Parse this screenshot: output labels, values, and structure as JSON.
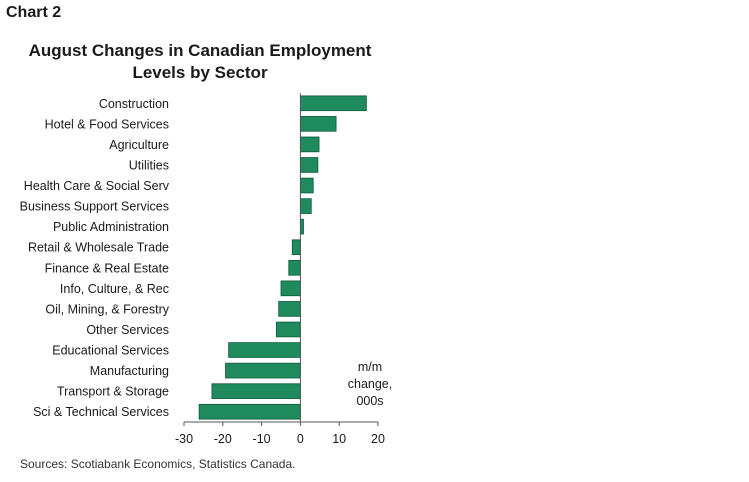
{
  "header": {
    "chart_label": "Chart 2",
    "title_line1": "August Changes in Canadian Employment",
    "title_line2": "Levels by Sector"
  },
  "footer": {
    "source": "Sources: Scotiabank Economics, Statistics Canada."
  },
  "colors": {
    "bar": "#1e8a5e",
    "bar_stroke": "#0e5a3a",
    "axis": "#555555"
  },
  "chart_data": {
    "type": "bar",
    "orientation": "horizontal",
    "title": "August Changes in Canadian Employment Levels by Sector",
    "categories": [
      "Construction",
      "Hotel & Food Services",
      "Agriculture",
      "Utilities",
      "Health Care & Social Serv",
      "Business Support Services",
      "Public Administration",
      "Retail & Wholesale Trade",
      "Finance & Real Estate",
      "Info, Culture, & Rec",
      "Oil, Mining, & Forestry",
      "Other Services",
      "Educational Services",
      "Manufacturing",
      "Transport & Storage",
      "Sci & Technical Services"
    ],
    "values": [
      17,
      9.2,
      4.8,
      4.5,
      3.3,
      2.8,
      0.8,
      -2.1,
      -3,
      -5,
      -5.6,
      -6.2,
      -18.5,
      -19.3,
      -22.8,
      -26.1
    ],
    "xlim": [
      -30,
      20
    ],
    "xticks": [
      -30,
      -20,
      -10,
      0,
      10,
      20
    ],
    "unit_label": [
      "m/m",
      "change,",
      "000s"
    ],
    "grid": false
  }
}
